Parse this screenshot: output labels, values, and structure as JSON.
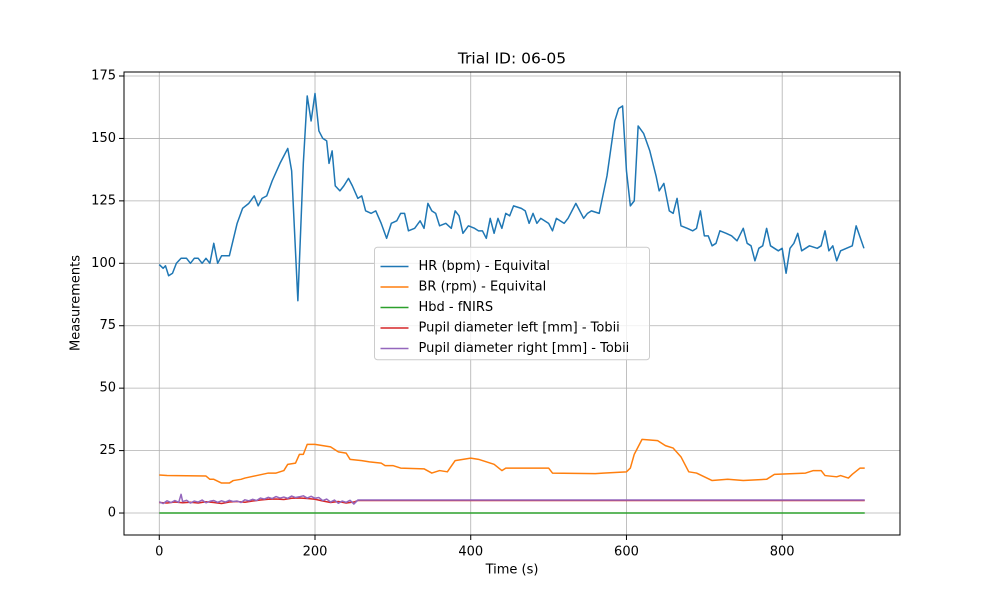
{
  "chart_data": {
    "type": "line",
    "title": "Trial ID: 06-05",
    "x_label": "Time (s)",
    "y_label": "Measurements",
    "xlim": [
      -45.3,
      951.3
    ],
    "ylim": [
      -8.8,
      176.6
    ],
    "xticks": [
      0,
      200,
      400,
      600,
      800
    ],
    "yticks": [
      0,
      25,
      50,
      75,
      100,
      125,
      150,
      175
    ],
    "grid": true,
    "legend": "center",
    "series": [
      {
        "name": "HR (bpm) - Equivital",
        "color": "#1f77b4",
        "x": [
          0,
          5,
          8,
          12,
          17,
          22,
          28,
          35,
          40,
          45,
          50,
          55,
          60,
          65,
          70,
          75,
          80,
          90,
          100,
          107,
          115,
          122,
          127,
          132,
          138,
          145,
          155,
          165,
          170,
          178,
          185,
          190,
          195,
          200,
          205,
          210,
          215,
          218,
          222,
          226,
          232,
          237,
          243,
          248,
          255,
          260,
          265,
          272,
          278,
          285,
          292,
          298,
          305,
          310,
          315,
          320,
          328,
          335,
          340,
          345,
          350,
          355,
          360,
          368,
          375,
          380,
          385,
          390,
          397,
          405,
          410,
          415,
          420,
          425,
          430,
          435,
          440,
          445,
          450,
          455,
          465,
          470,
          475,
          480,
          485,
          490,
          500,
          505,
          510,
          520,
          525,
          535,
          545,
          550,
          555,
          565,
          575,
          585,
          590,
          595,
          600,
          605,
          610,
          615,
          622,
          630,
          638,
          642,
          648,
          655,
          660,
          665,
          670,
          678,
          685,
          690,
          695,
          700,
          705,
          710,
          715,
          720,
          728,
          735,
          742,
          750,
          755,
          760,
          765,
          770,
          775,
          780,
          785,
          795,
          800,
          805,
          810,
          815,
          820,
          825,
          830,
          835,
          845,
          850,
          855,
          860,
          865,
          870,
          875,
          890,
          895,
          905
        ],
        "values": [
          99.5,
          98,
          99,
          95,
          96,
          100,
          102,
          102,
          100,
          102,
          102,
          100,
          102,
          100,
          108,
          100,
          103,
          103,
          116,
          122,
          124,
          127,
          123,
          126,
          127,
          133,
          140,
          146,
          137,
          85,
          140,
          167,
          157,
          168,
          153,
          150,
          149,
          140,
          145,
          131,
          129,
          131,
          134,
          131,
          126,
          127,
          121,
          120,
          121,
          116,
          110,
          116,
          117,
          120,
          120,
          113,
          114,
          117,
          114,
          124,
          121,
          120,
          115,
          116,
          114,
          121,
          119,
          112,
          115,
          114,
          113,
          113,
          110,
          118,
          112,
          118,
          114,
          120,
          119,
          123,
          122,
          121,
          116,
          120,
          116,
          118,
          116,
          113,
          118,
          116,
          118,
          124,
          118,
          120,
          121,
          120,
          135,
          157,
          162,
          163,
          137,
          123,
          125,
          155,
          152,
          145,
          135,
          129,
          132,
          121,
          120,
          126,
          115,
          114,
          113,
          114,
          121,
          111,
          111,
          107,
          108,
          113,
          112,
          111,
          109,
          114,
          108,
          107,
          101,
          106,
          107,
          114,
          107,
          105,
          106,
          96,
          106,
          108,
          112,
          105,
          106,
          107,
          106,
          107,
          113,
          105,
          107,
          101,
          105,
          107,
          115,
          106
        ]
      },
      {
        "name": "BR (rpm) - Equivital",
        "color": "#ff7f0e",
        "x": [
          0,
          10,
          60,
          65,
          70,
          80,
          90,
          95,
          105,
          110,
          125,
          140,
          150,
          160,
          165,
          175,
          180,
          185,
          190,
          200,
          210,
          220,
          230,
          240,
          245,
          260,
          270,
          285,
          290,
          300,
          310,
          340,
          350,
          360,
          370,
          380,
          390,
          400,
          410,
          420,
          430,
          440,
          445,
          500,
          505,
          560,
          570,
          600,
          605,
          610,
          620,
          640,
          650,
          660,
          670,
          680,
          690,
          700,
          710,
          730,
          750,
          780,
          790,
          830,
          840,
          850,
          855,
          870,
          875,
          885,
          890,
          900,
          906
        ],
        "values": [
          15.2,
          15,
          14.8,
          13.5,
          13.5,
          12,
          12,
          13,
          13.5,
          14,
          15,
          16,
          16,
          17,
          19.5,
          20,
          23.5,
          23.5,
          27.5,
          27.5,
          27,
          26.5,
          24.5,
          24,
          21.5,
          21,
          20.5,
          20,
          19,
          19,
          18,
          17.7,
          16,
          17,
          16.5,
          21,
          21.5,
          22,
          21.5,
          20.5,
          19.5,
          17,
          18,
          18,
          16,
          15.8,
          16,
          16.5,
          18,
          23.5,
          29.5,
          29,
          27,
          26,
          22.5,
          16.5,
          16,
          14.5,
          13,
          13.5,
          13,
          13.5,
          15.5,
          16,
          17,
          17,
          15,
          14.5,
          15,
          14,
          15.5,
          18,
          18
        ]
      },
      {
        "name": "Hbd - fNIRS",
        "color": "#2ca02c",
        "x": [
          0,
          906
        ],
        "values": [
          0,
          0
        ]
      },
      {
        "name": "Pupil diameter left [mm] - Tobii",
        "color": "#d62728",
        "x": [
          0,
          10,
          20,
          30,
          40,
          50,
          60,
          70,
          80,
          90,
          100,
          110,
          120,
          130,
          140,
          150,
          160,
          170,
          180,
          190,
          200,
          210,
          220,
          230,
          240,
          250,
          255,
          906
        ],
        "values": [
          4.2,
          4.0,
          4.4,
          4.1,
          4.3,
          4.0,
          4.5,
          4.2,
          3.8,
          4.4,
          4.6,
          4.3,
          4.8,
          5.2,
          5.5,
          5.6,
          5.4,
          5.9,
          6.0,
          5.8,
          5.5,
          4.8,
          4.2,
          4.6,
          4.0,
          4.4,
          5.0,
          5.0
        ]
      },
      {
        "name": "Pupil diameter right [mm] - Tobii",
        "color": "#9467bd",
        "x": [
          0,
          5,
          10,
          15,
          20,
          25,
          28,
          30,
          35,
          40,
          45,
          50,
          55,
          60,
          65,
          70,
          75,
          80,
          85,
          90,
          95,
          100,
          105,
          110,
          115,
          120,
          125,
          130,
          135,
          140,
          145,
          150,
          155,
          160,
          165,
          170,
          175,
          180,
          185,
          190,
          195,
          200,
          205,
          210,
          215,
          220,
          225,
          230,
          235,
          240,
          245,
          250,
          255,
          906
        ],
        "values": [
          4.5,
          3.8,
          4.9,
          4.2,
          5.0,
          4.3,
          7.5,
          4.6,
          5.1,
          4.0,
          4.8,
          4.4,
          5.2,
          4.1,
          4.7,
          5.0,
          4.3,
          4.9,
          4.4,
          5.1,
          4.6,
          4.8,
          4.2,
          5.3,
          4.9,
          5.5,
          5.0,
          6.0,
          5.6,
          6.3,
          5.8,
          6.6,
          6.0,
          6.4,
          5.9,
          6.8,
          6.2,
          6.5,
          6.9,
          6.0,
          6.7,
          5.9,
          6.2,
          5.0,
          5.6,
          4.4,
          5.2,
          3.9,
          4.8,
          4.3,
          5.1,
          3.6,
          5.2,
          5.2
        ]
      }
    ]
  }
}
